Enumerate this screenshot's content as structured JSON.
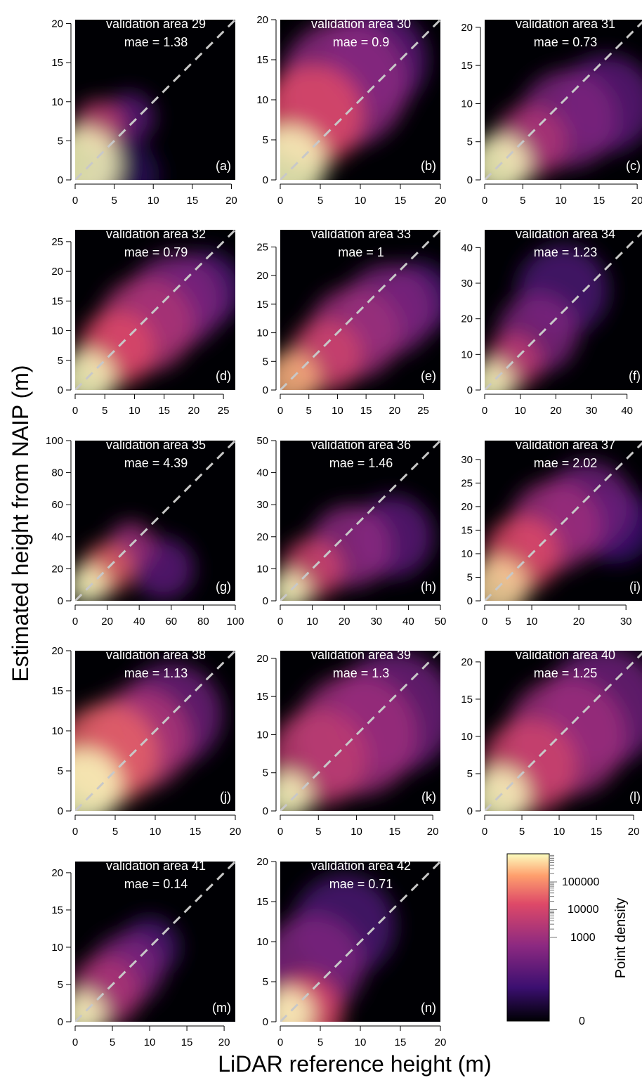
{
  "figure": {
    "ylabel": "Estimated height from NAIP (m)",
    "xlabel": "LiDAR reference height (m)",
    "colorbar": {
      "label": "Point density",
      "ticks": [
        "100000",
        "10000",
        "1000",
        "0"
      ],
      "scale": "log",
      "colors": [
        "#000004",
        "#3b0f70",
        "#8c2981",
        "#de4968",
        "#fe9f6d",
        "#fcfdbf"
      ]
    }
  },
  "chart_data": [
    {
      "type": "heatmap",
      "title": "validation area 29",
      "metric": "mae = 1.38",
      "panel": "(a)",
      "xlim": [
        0,
        20.5
      ],
      "ylim": [
        0,
        20.5
      ],
      "xticks": [
        0,
        5,
        10,
        15,
        20
      ],
      "yticks": [
        0,
        5,
        10,
        15,
        20
      ],
      "reference_line": "y = x",
      "blobs": [
        [
          1,
          2,
          3,
          1
        ],
        [
          3,
          7,
          2,
          0.6
        ],
        [
          7,
          8,
          2,
          0.3
        ],
        [
          6,
          0.5,
          3,
          0.15
        ]
      ]
    },
    {
      "type": "heatmap",
      "title": "validation area 30",
      "metric": "mae = 0.9",
      "panel": "(b)",
      "xlim": [
        0,
        20
      ],
      "ylim": [
        0,
        20
      ],
      "xticks": [
        0,
        5,
        10,
        15,
        20
      ],
      "yticks": [
        0,
        5,
        10,
        15,
        20
      ],
      "reference_line": "y = x",
      "blobs": [
        [
          1,
          2,
          3,
          1
        ],
        [
          4,
          8,
          4,
          0.7
        ],
        [
          8,
          12,
          5,
          0.45
        ],
        [
          12,
          15,
          4,
          0.3
        ]
      ]
    },
    {
      "type": "heatmap",
      "title": "validation area 31",
      "metric": "mae = 0.73",
      "panel": "(c)",
      "xlim": [
        0,
        21
      ],
      "ylim": [
        0,
        21
      ],
      "xticks": [
        0,
        5,
        10,
        15,
        20
      ],
      "yticks": [
        0,
        5,
        10,
        15,
        20
      ],
      "reference_line": "y = x",
      "blobs": [
        [
          2,
          2,
          2.5,
          1
        ],
        [
          6,
          5,
          3,
          0.55
        ],
        [
          11,
          8,
          4,
          0.4
        ],
        [
          16,
          10,
          4,
          0.3
        ]
      ]
    },
    {
      "type": "heatmap",
      "title": "validation area 32",
      "metric": "mae = 0.79",
      "panel": "(d)",
      "xlim": [
        0,
        27
      ],
      "ylim": [
        0,
        27
      ],
      "xticks": [
        0,
        5,
        10,
        15,
        20,
        25
      ],
      "yticks": [
        0,
        5,
        10,
        15,
        20,
        25
      ],
      "reference_line": "y = x",
      "blobs": [
        [
          2,
          2,
          3,
          1
        ],
        [
          7,
          7,
          4,
          0.7
        ],
        [
          12,
          11,
          5,
          0.55
        ],
        [
          17,
          15,
          5,
          0.4
        ],
        [
          22,
          17,
          4,
          0.25
        ]
      ]
    },
    {
      "type": "heatmap",
      "title": "validation area 33",
      "metric": "mae = 1",
      "panel": "(e)",
      "xlim": [
        0,
        28
      ],
      "ylim": [
        0,
        28
      ],
      "xticks": [
        0,
        5,
        10,
        15,
        20,
        25
      ],
      "yticks": [
        0,
        5,
        10,
        15,
        20,
        25
      ],
      "reference_line": "y = x",
      "blobs": [
        [
          2,
          2,
          3,
          0.9
        ],
        [
          8,
          6,
          4,
          0.65
        ],
        [
          13,
          10,
          5,
          0.5
        ],
        [
          19,
          14,
          5,
          0.4
        ],
        [
          24,
          16,
          4,
          0.25
        ]
      ]
    },
    {
      "type": "heatmap",
      "title": "validation area 34",
      "metric": "mae = 1.23",
      "panel": "(f)",
      "xlim": [
        0,
        45
      ],
      "ylim": [
        0,
        45
      ],
      "xticks": [
        0,
        10,
        20,
        30,
        40
      ],
      "yticks": [
        0,
        10,
        20,
        30,
        40
      ],
      "reference_line": "y = x",
      "blobs": [
        [
          2,
          2,
          4,
          1
        ],
        [
          8,
          8,
          5,
          0.6
        ],
        [
          15,
          16,
          7,
          0.4
        ],
        [
          22,
          28,
          8,
          0.25
        ]
      ]
    },
    {
      "type": "heatmap",
      "title": "validation area 35",
      "metric": "mae = 4.39",
      "panel": "(g)",
      "xlim": [
        0,
        100
      ],
      "ylim": [
        0,
        100
      ],
      "xticks": [
        0,
        20,
        40,
        60,
        80,
        100
      ],
      "yticks": [
        0,
        20,
        40,
        60,
        80,
        100
      ],
      "reference_line": "y = x",
      "blobs": [
        [
          8,
          10,
          8,
          1
        ],
        [
          20,
          20,
          10,
          0.75
        ],
        [
          35,
          35,
          9,
          0.5
        ],
        [
          55,
          20,
          12,
          0.3
        ]
      ]
    },
    {
      "type": "heatmap",
      "title": "validation area 36",
      "metric": "mae = 1.46",
      "panel": "(h)",
      "xlim": [
        0,
        50
      ],
      "ylim": [
        0,
        50
      ],
      "xticks": [
        0,
        10,
        20,
        30,
        40,
        50
      ],
      "yticks": [
        0,
        10,
        20,
        30,
        40,
        50
      ],
      "reference_line": "y = x",
      "blobs": [
        [
          3,
          3,
          4,
          1
        ],
        [
          10,
          10,
          6,
          0.65
        ],
        [
          22,
          17,
          8,
          0.45
        ],
        [
          35,
          20,
          8,
          0.3
        ]
      ]
    },
    {
      "type": "heatmap",
      "title": "validation area 37",
      "metric": "mae = 2.02",
      "panel": "(i)",
      "xlim": [
        0,
        34
      ],
      "ylim": [
        0,
        34
      ],
      "xticks": [
        0,
        5,
        10,
        20,
        30
      ],
      "yticks": [
        0,
        5,
        10,
        15,
        20,
        25,
        30
      ],
      "reference_line": "y = x",
      "blobs": [
        [
          3,
          3,
          4,
          0.95
        ],
        [
          8,
          10,
          5,
          0.7
        ],
        [
          15,
          16,
          6,
          0.5
        ],
        [
          22,
          20,
          6,
          0.35
        ],
        [
          28,
          16,
          5,
          0.2
        ]
      ]
    },
    {
      "type": "heatmap",
      "title": "validation area 38",
      "metric": "mae = 1.13",
      "panel": "(j)",
      "xlim": [
        0,
        20
      ],
      "ylim": [
        0,
        20
      ],
      "xticks": [
        0,
        5,
        10,
        15,
        20
      ],
      "yticks": [
        0,
        5,
        10,
        15,
        20
      ],
      "reference_line": "y = x",
      "blobs": [
        [
          1,
          3,
          3,
          1
        ],
        [
          4,
          7,
          4,
          0.75
        ],
        [
          8,
          9,
          4,
          0.55
        ],
        [
          12,
          12,
          4,
          0.35
        ]
      ]
    },
    {
      "type": "heatmap",
      "title": "validation area 39",
      "metric": "mae = 1.3",
      "panel": "(k)",
      "xlim": [
        0,
        21
      ],
      "ylim": [
        0,
        21
      ],
      "xticks": [
        0,
        5,
        10,
        15,
        20
      ],
      "yticks": [
        0,
        5,
        10,
        15,
        20
      ],
      "reference_line": "y = x",
      "blobs": [
        [
          1,
          2,
          2,
          1
        ],
        [
          5,
          7,
          4,
          0.6
        ],
        [
          10,
          10,
          5,
          0.5
        ],
        [
          15,
          13,
          5,
          0.35
        ]
      ]
    },
    {
      "type": "heatmap",
      "title": "validation area 40",
      "metric": "mae = 1.25",
      "panel": "(l)",
      "xlim": [
        0,
        21.5
      ],
      "ylim": [
        0,
        21.5
      ],
      "xticks": [
        0,
        5,
        10,
        15,
        20
      ],
      "yticks": [
        0,
        5,
        10,
        15,
        20
      ],
      "reference_line": "y = x",
      "blobs": [
        [
          2,
          2,
          2.5,
          1
        ],
        [
          6,
          6,
          4,
          0.65
        ],
        [
          11,
          10,
          5,
          0.5
        ],
        [
          16,
          14,
          5,
          0.35
        ]
      ]
    },
    {
      "type": "heatmap",
      "title": "validation area 41",
      "metric": "mae = 0.14",
      "panel": "(m)",
      "xlim": [
        0,
        21.5
      ],
      "ylim": [
        0,
        21.5
      ],
      "xticks": [
        0,
        5,
        10,
        15,
        20
      ],
      "yticks": [
        0,
        5,
        10,
        15,
        20
      ],
      "reference_line": "y = x",
      "blobs": [
        [
          1,
          1,
          2,
          1
        ],
        [
          4,
          4,
          3,
          0.55
        ],
        [
          7,
          7,
          3,
          0.4
        ],
        [
          10,
          10,
          2.5,
          0.25
        ]
      ]
    },
    {
      "type": "heatmap",
      "title": "validation area 42",
      "metric": "mae = 0.71",
      "panel": "(n)",
      "xlim": [
        0,
        20
      ],
      "ylim": [
        0,
        20
      ],
      "xticks": [
        0,
        5,
        10,
        15,
        20
      ],
      "yticks": [
        0,
        5,
        10,
        15,
        20
      ],
      "reference_line": "y = x",
      "blobs": [
        [
          1,
          1,
          2,
          1
        ],
        [
          3,
          1,
          3,
          0.7
        ],
        [
          4,
          7,
          4,
          0.4
        ],
        [
          8,
          12,
          4,
          0.25
        ]
      ]
    }
  ]
}
